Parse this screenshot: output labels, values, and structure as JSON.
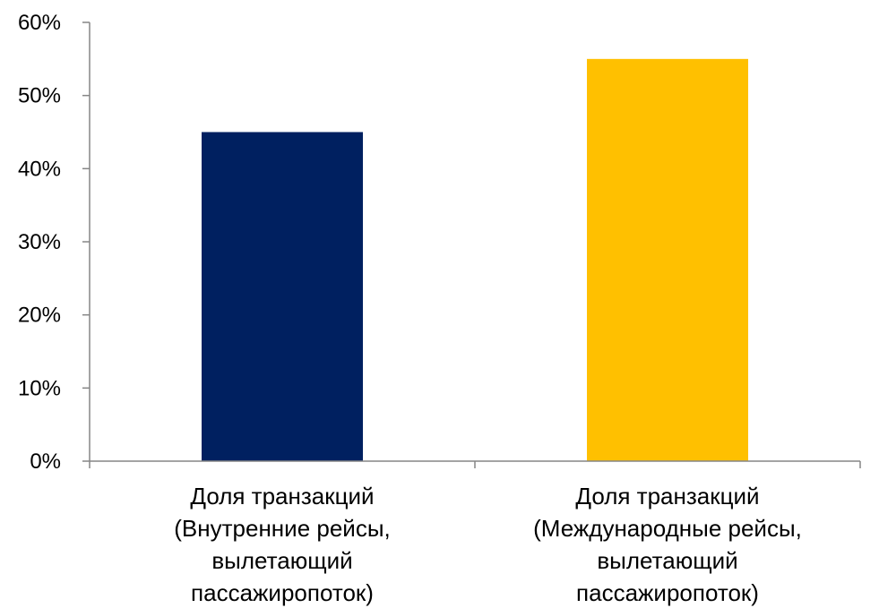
{
  "chart_data": {
    "type": "bar",
    "categories": [
      [
        "Доля транзакций",
        "(Внутренние рейсы,",
        "вылетающий",
        "пассажиропоток)"
      ],
      [
        "Доля транзакций",
        "(Международные рейсы,",
        "вылетающий",
        "пассажиропоток)"
      ]
    ],
    "values": [
      45,
      55
    ],
    "colors": [
      "#002060",
      "#FFC000"
    ],
    "ylim": [
      0,
      60
    ],
    "yticks": [
      0,
      10,
      20,
      30,
      40,
      50,
      60
    ],
    "ytick_labels": [
      "0%",
      "10%",
      "20%",
      "30%",
      "40%",
      "50%",
      "60%"
    ],
    "grid": false,
    "title": "",
    "xlabel": "",
    "ylabel": ""
  }
}
